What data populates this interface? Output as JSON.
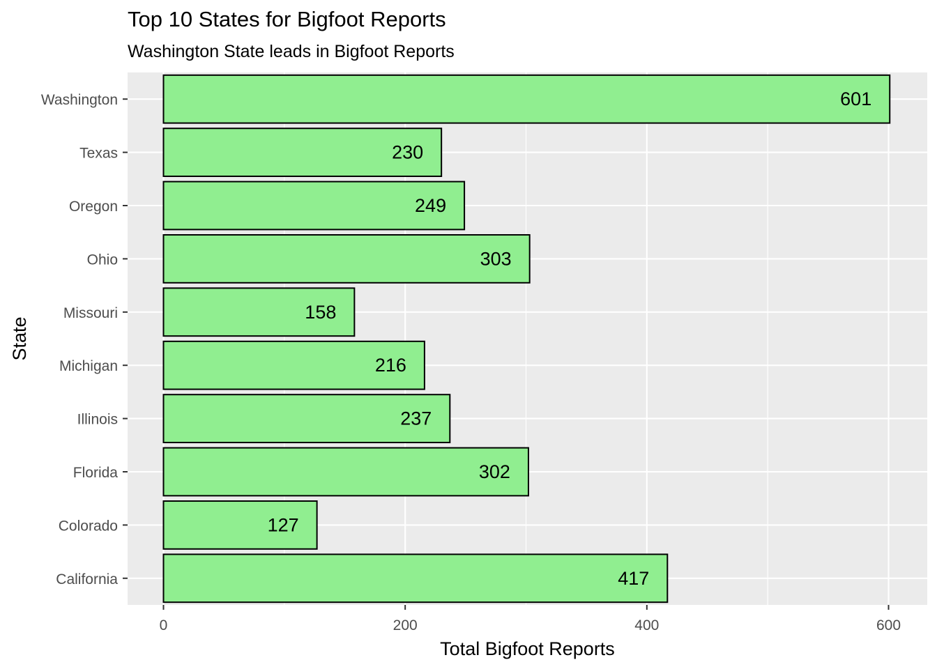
{
  "chart_data": {
    "type": "bar",
    "orientation": "horizontal",
    "title": "Top 10 States for Bigfoot Reports",
    "subtitle": "Washington State leads in Bigfoot Reports",
    "xlabel": "Total Bigfoot Reports",
    "ylabel": "State",
    "categories": [
      "Washington",
      "Texas",
      "Oregon",
      "Ohio",
      "Missouri",
      "Michigan",
      "Illinois",
      "Florida",
      "Colorado",
      "California"
    ],
    "values": [
      601,
      230,
      249,
      303,
      158,
      216,
      237,
      302,
      127,
      417
    ],
    "data_labels": [
      "601",
      "230",
      "249",
      "303",
      "158",
      "216",
      "237",
      "302",
      "127",
      "417"
    ],
    "xlim": [
      -30,
      630
    ],
    "x_ticks": [
      0,
      200,
      400,
      600
    ],
    "x_tick_labels": [
      "0",
      "200",
      "400",
      "600"
    ],
    "grid": true,
    "colors": {
      "bar_fill": "#90EE90",
      "bar_stroke": "#000000",
      "panel_background": "#EBEBEB",
      "grid": "#FFFFFF",
      "axis_text": "#4D4D4D"
    }
  }
}
